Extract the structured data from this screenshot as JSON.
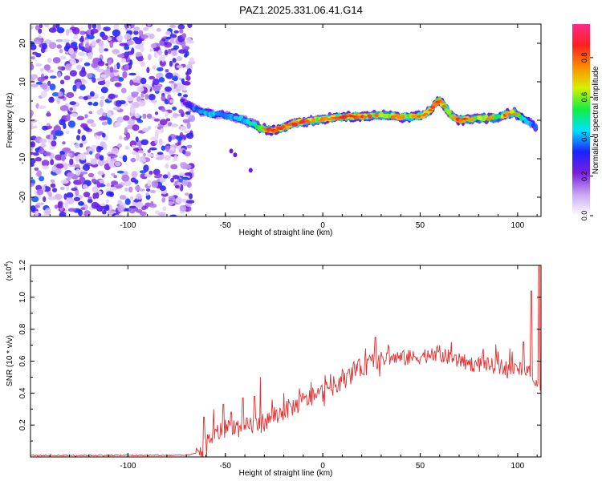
{
  "title": "PAZ1.2025.331.06.41.G14",
  "chart_data": [
    {
      "type": "heatmap",
      "xlabel": "Height of straight line (km)",
      "ylabel": "Frequency (Hz)",
      "xlim": [
        -150,
        112
      ],
      "ylim": [
        -25,
        25
      ],
      "xticks": [
        -100,
        -50,
        0,
        50,
        100
      ],
      "yticks": [
        -20,
        -10,
        0,
        10,
        20
      ],
      "noise_region": [
        -150,
        -67
      ],
      "ridge": {
        "x": [
          -72,
          -66,
          -60,
          -56,
          -52,
          -48,
          -44,
          -40,
          -36,
          -32,
          -28,
          -24,
          -20,
          -16,
          -12,
          -8,
          -4,
          0,
          4,
          8,
          12,
          16,
          20,
          24,
          28,
          32,
          36,
          40,
          44,
          48,
          52,
          56,
          58,
          60,
          62,
          64,
          66,
          70,
          74,
          78,
          82,
          86,
          90,
          94,
          98,
          102,
          106,
          110
        ],
        "freq": [
          5,
          3,
          2,
          1.5,
          1.5,
          1,
          0.5,
          0,
          -1,
          -2,
          -2.5,
          -2.5,
          -1.8,
          -1,
          -0.5,
          -0.3,
          0,
          0.3,
          0.6,
          0.8,
          1,
          1,
          1,
          1.2,
          1.3,
          1.3,
          1.1,
          0.8,
          0.9,
          1.1,
          1.4,
          3,
          4.6,
          5,
          4,
          2.5,
          1.2,
          0,
          0.2,
          0.4,
          0.5,
          0.6,
          0.8,
          1.5,
          2,
          0.8,
          -0.5,
          -2
        ],
        "amp": [
          0.3,
          0.45,
          0.5,
          0.55,
          0.5,
          0.5,
          0.55,
          0.55,
          0.65,
          0.7,
          0.95,
          0.95,
          0.85,
          0.85,
          0.9,
          0.85,
          0.75,
          0.8,
          0.85,
          0.9,
          0.95,
          0.95,
          0.9,
          0.85,
          0.8,
          0.75,
          0.8,
          0.85,
          0.8,
          0.85,
          0.8,
          0.85,
          0.95,
          0.95,
          0.85,
          0.8,
          0.7,
          0.95,
          0.85,
          0.7,
          0.8,
          0.75,
          0.7,
          0.9,
          0.8,
          0.65,
          0.55,
          0.4
        ]
      },
      "colorbar": {
        "label": "Normalized spectral amplitude",
        "ticks": [
          0.0,
          0.2,
          0.4,
          0.6,
          0.8
        ],
        "ticklabels": [
          "0.0",
          "0.2",
          "0.4",
          "0.6",
          "0.8"
        ],
        "range": [
          0,
          0.97
        ],
        "colors": [
          "#ffffff",
          "#c9a6f2",
          "#7a1fe0",
          "#1c22ff",
          "#00e0ff",
          "#10f040",
          "#d6f000",
          "#ff8a00",
          "#ff2020",
          "#ff2a8a"
        ]
      }
    },
    {
      "type": "line",
      "xlabel": "Height of straight line (km)",
      "ylabel": "SNR (10 * v/v)",
      "scale_label_base": "(x10",
      "scale_label_exp": "4",
      "scale_label_end": ")",
      "color": "#e03030",
      "xlim": [
        -150,
        112
      ],
      "ylim": [
        0,
        1.2
      ],
      "xticks": [
        -100,
        -50,
        0,
        50,
        100
      ],
      "yticks": [
        0.2,
        0.4,
        0.6,
        0.8,
        1.0,
        1.2
      ],
      "yticklabels": [
        "0.2",
        "0.4",
        "0.6",
        "0.8",
        "1.0",
        "1.2"
      ],
      "series": [
        {
          "name": "SNR",
          "x": [
            -150,
            -130,
            -110,
            -90,
            -70,
            -66,
            -62,
            -58,
            -54,
            -50,
            -46,
            -42,
            -38,
            -34,
            -30,
            -26,
            -22,
            -18,
            -14,
            -10,
            -6,
            -2,
            2,
            6,
            10,
            14,
            18,
            22,
            26,
            30,
            34,
            38,
            42,
            46,
            50,
            54,
            58,
            62,
            66,
            70,
            74,
            78,
            82,
            86,
            90,
            94,
            98,
            102,
            106,
            108,
            110,
            112
          ],
          "y": [
            0.01,
            0.01,
            0.01,
            0.01,
            0.01,
            0.02,
            0.04,
            0.12,
            0.15,
            0.18,
            0.2,
            0.16,
            0.2,
            0.2,
            0.22,
            0.24,
            0.27,
            0.3,
            0.32,
            0.35,
            0.37,
            0.39,
            0.42,
            0.45,
            0.48,
            0.51,
            0.55,
            0.57,
            0.6,
            0.61,
            0.62,
            0.62,
            0.62,
            0.62,
            0.63,
            0.64,
            0.65,
            0.63,
            0.62,
            0.6,
            0.59,
            0.58,
            0.58,
            0.57,
            0.57,
            0.56,
            0.55,
            0.55,
            0.52,
            0.48,
            0.44,
            0.46
          ]
        }
      ],
      "spikes": [
        {
          "x": -61,
          "y": 0.25
        },
        {
          "x": -56,
          "y": 0.3
        },
        {
          "x": -51,
          "y": 0.33
        },
        {
          "x": -47,
          "y": 0.28
        },
        {
          "x": -41,
          "y": 0.37
        },
        {
          "x": -35,
          "y": 0.38
        },
        {
          "x": -32,
          "y": 0.5
        },
        {
          "x": -26,
          "y": 0.36
        },
        {
          "x": -20,
          "y": 0.4
        },
        {
          "x": -12,
          "y": 0.43
        },
        {
          "x": -6,
          "y": 0.47
        },
        {
          "x": 4,
          "y": 0.52
        },
        {
          "x": 10,
          "y": 0.55
        },
        {
          "x": 16,
          "y": 0.6
        },
        {
          "x": 22,
          "y": 0.68
        },
        {
          "x": 27,
          "y": 0.75
        },
        {
          "x": 34,
          "y": 0.68
        },
        {
          "x": 44,
          "y": 0.67
        },
        {
          "x": 56,
          "y": 0.68
        },
        {
          "x": 60,
          "y": 0.7
        },
        {
          "x": 66,
          "y": 0.72
        },
        {
          "x": 72,
          "y": 0.63
        },
        {
          "x": 82,
          "y": 0.65
        },
        {
          "x": 90,
          "y": 0.66
        },
        {
          "x": 96,
          "y": 0.68
        },
        {
          "x": 103,
          "y": 0.72
        },
        {
          "x": 107,
          "y": 1.04
        },
        {
          "x": 111,
          "y": 1.2
        }
      ]
    }
  ]
}
